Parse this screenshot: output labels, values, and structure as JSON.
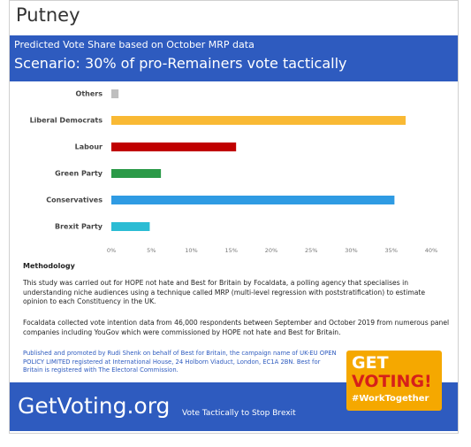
{
  "header": {
    "place": "Putney"
  },
  "chart_data": {
    "type": "hbar",
    "subtitle": "Predicted Vote Share based on October MRP data",
    "title": "Scenario: 30% of pro-Remainers vote tactically",
    "categories": [
      "Others",
      "Liberal Democrats",
      "Labour",
      "Green Party",
      "Conservatives",
      "Brexit Party"
    ],
    "values": [
      0.9,
      36.8,
      15.6,
      6.2,
      35.4,
      4.8
    ],
    "colors": [
      "#bfbfbf",
      "#f9b934",
      "#c00000",
      "#2b9a48",
      "#2f9be3",
      "#2bbcd4"
    ],
    "xlim": [
      0,
      40
    ],
    "xticks": [
      {
        "value": 0,
        "label": "0%"
      },
      {
        "value": 5,
        "label": "5%"
      },
      {
        "value": 10,
        "label": "10%"
      },
      {
        "value": 15,
        "label": "15%"
      },
      {
        "value": 20,
        "label": "20%"
      },
      {
        "value": 25,
        "label": "25%"
      },
      {
        "value": 30,
        "label": "30%"
      },
      {
        "value": 35,
        "label": "35%"
      },
      {
        "value": 40,
        "label": "40%"
      }
    ]
  },
  "methodology": {
    "heading": "Methodology",
    "paragraphs": [
      "This study was carried out for HOPE not hate and Best for Britain by Focaldata, a polling agency that specialises in understanding niche audiences using a technique called MRP (multi-level regression with poststratification) to estimate opinion to each Constituency in the UK.",
      "Focaldata collected vote intention data from 46,000 respondents between September and October 2019 from numerous panel companies including YouGov which were commissioned by HOPE not hate and Best for Britain."
    ]
  },
  "imprint": "Published and promoted by Rudi Shenk on behalf of Best for Britain, the campaign name of UK-EU OPEN POLICY LIMITED registered at International House, 24 Holborn Viaduct, London, EC1A 2BN. Best for Britain is registered with The Electoral Commission.",
  "badge": {
    "line1": "GET",
    "line2": "VOTING!",
    "tag": "#WorkTogether"
  },
  "footer": {
    "site": "GetVoting.org",
    "slogan": "Vote Tactically to Stop Brexit"
  }
}
